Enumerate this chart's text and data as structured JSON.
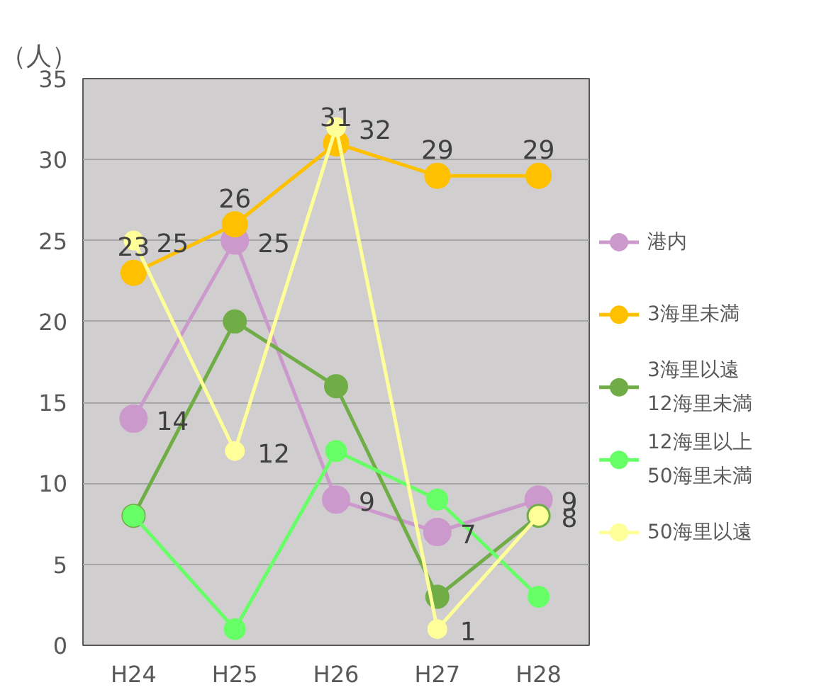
{
  "chart_data": {
    "type": "line",
    "ylabel": "（人）",
    "categories": [
      "H24",
      "H25",
      "H26",
      "H27",
      "H28"
    ],
    "ylim": [
      0,
      35
    ],
    "yticks": [
      0,
      5,
      10,
      15,
      20,
      25,
      30,
      35
    ],
    "grid": "y",
    "legend": "right",
    "marker": "circle",
    "line_style": "solid",
    "series": [
      {
        "name": "港内",
        "color": "#cc99cc",
        "values": [
          14,
          25,
          9,
          7,
          9
        ],
        "value_labels": [
          "14",
          "25",
          "9",
          "7",
          "9"
        ]
      },
      {
        "name": "3海里未満",
        "color": "#ffc000",
        "values": [
          23,
          26,
          31,
          29,
          29
        ],
        "value_labels": [
          "23",
          "26",
          "31",
          "29",
          "29"
        ]
      },
      {
        "name": "3海里以遠\n12海里未満",
        "color": "#70ad47",
        "values": [
          8,
          20,
          16,
          3,
          8
        ]
      },
      {
        "name": "12海里以上\n50海里未満",
        "color": "#66ff66",
        "values": [
          8,
          1,
          12,
          9,
          3
        ]
      },
      {
        "name": "50海里以遠",
        "color": "#ffff99",
        "values": [
          25,
          12,
          32,
          1,
          8
        ],
        "value_labels": [
          "25",
          "12",
          "32",
          "1",
          "8"
        ]
      }
    ]
  }
}
